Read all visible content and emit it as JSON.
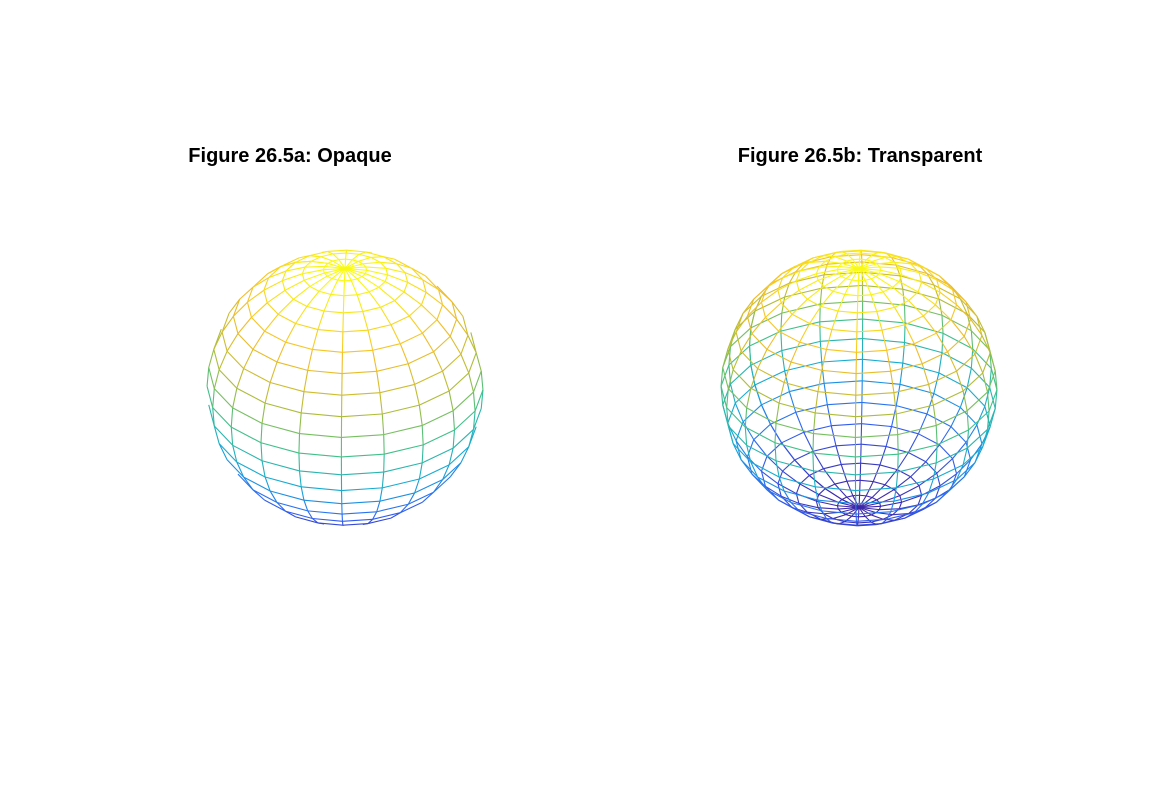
{
  "chart_data": [
    {
      "type": "mesh",
      "title": "Figure 26.5a: Opaque",
      "surface": "sphere",
      "style": "wireframe",
      "n": 20,
      "hidden_lines": "removed",
      "colormap": "parula",
      "color_by": "z",
      "axes_visible": false,
      "view_azimuth_deg": -37.5,
      "view_elevation_deg": 30
    },
    {
      "type": "mesh",
      "title": "Figure 26.5b: Transparent",
      "surface": "sphere",
      "style": "wireframe",
      "n": 20,
      "hidden_lines": "shown",
      "colormap": "parula",
      "color_by": "z",
      "axes_visible": false,
      "view_azimuth_deg": -37.5,
      "view_elevation_deg": 30
    }
  ],
  "colors": {
    "background": "#ffffff",
    "title_text": "#000000",
    "colormap_stops": [
      "#3e26a8",
      "#2f64f5",
      "#15a9d6",
      "#40c08a",
      "#b6bd34",
      "#f6bd2a",
      "#f9fb14"
    ]
  }
}
